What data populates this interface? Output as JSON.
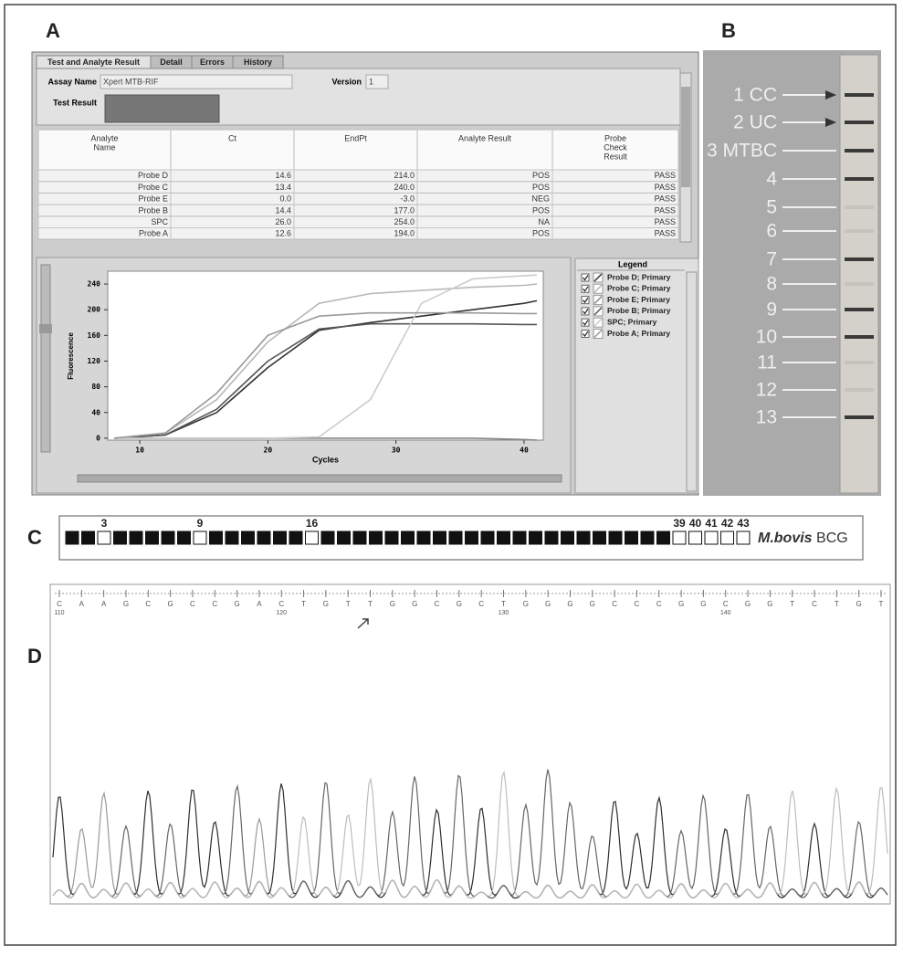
{
  "panels": [
    "A",
    "B",
    "C",
    "D"
  ],
  "software": {
    "tabs": [
      "Test and Analyte Result",
      "Detail",
      "Errors",
      "History"
    ],
    "assay_name_label": "Assay Name",
    "assay_name": "Xpert MTB-RIF",
    "version_label": "Version",
    "version": "1",
    "test_result_label": "Test Result",
    "table": {
      "header": [
        [
          "Analyte",
          "Name"
        ],
        [
          "Ct"
        ],
        [
          "EndPt"
        ],
        [
          "Analyte Result"
        ],
        [
          "Probe",
          "Check",
          "Result"
        ]
      ],
      "rows": [
        [
          "Probe D",
          "14.6",
          "214.0",
          "POS",
          "PASS"
        ],
        [
          "Probe C",
          "13.4",
          "240.0",
          "POS",
          "PASS"
        ],
        [
          "Probe E",
          "0.0",
          "-3.0",
          "NEG",
          "PASS"
        ],
        [
          "Probe B",
          "14.4",
          "177.0",
          "POS",
          "PASS"
        ],
        [
          "SPC",
          "26.0",
          "254.0",
          "NA",
          "PASS"
        ],
        [
          "Probe A",
          "12.6",
          "194.0",
          "POS",
          "PASS"
        ]
      ]
    },
    "legend": {
      "title": "Legend",
      "entries": [
        "Probe D; Primary",
        "Probe C; Primary",
        "Probe E; Primary",
        "Probe B; Primary",
        "SPC; Primary",
        "Probe A; Primary"
      ]
    }
  },
  "chart_data": {
    "type": "line",
    "x_label": "Cycles",
    "y_label": "Fluorescence",
    "x": [
      8,
      12,
      16,
      20,
      24,
      28,
      32,
      36,
      40,
      41
    ],
    "series": [
      {
        "name": "Probe D",
        "color": "#333333",
        "values": [
          0,
          5,
          40,
          110,
          168,
          180,
          190,
          200,
          210,
          214
        ]
      },
      {
        "name": "Probe C",
        "color": "#b8b8b8",
        "values": [
          0,
          8,
          60,
          150,
          210,
          225,
          230,
          235,
          238,
          240
        ]
      },
      {
        "name": "Probe E",
        "color": "#888888",
        "values": [
          0,
          0,
          0,
          0,
          0,
          0,
          0,
          0,
          -2,
          -3
        ]
      },
      {
        "name": "Probe B",
        "color": "#555555",
        "values": [
          0,
          5,
          45,
          120,
          170,
          178,
          178,
          178,
          177,
          177
        ]
      },
      {
        "name": "SPC",
        "color": "#cccccc",
        "values": [
          0,
          0,
          0,
          0,
          2,
          60,
          210,
          248,
          253,
          254
        ]
      },
      {
        "name": "Probe A",
        "color": "#999999",
        "values": [
          0,
          8,
          70,
          160,
          190,
          195,
          195,
          195,
          194,
          194
        ]
      }
    ],
    "xlim": [
      7.5,
      41.5
    ],
    "ylim": [
      -3,
      260
    ],
    "xticks": [
      10,
      20,
      30,
      40
    ],
    "yticks": [
      0,
      40,
      80,
      120,
      160,
      200,
      240
    ]
  },
  "strip": {
    "labels": [
      "1 CC",
      "2 UC",
      "3 MTBC",
      "4",
      "5",
      "6",
      "7",
      "8",
      "9",
      "10",
      "11",
      "12",
      "13"
    ]
  },
  "spoligotype": {
    "absent": [
      3,
      9,
      16,
      39,
      40,
      41,
      42,
      43
    ],
    "species": "M.bovis",
    "strain": "BCG"
  },
  "chromatogram": {
    "bases": [
      "C",
      "A",
      "A",
      "G",
      "C",
      "G",
      "C",
      "C",
      "G",
      "A",
      "C",
      "T",
      "G",
      "T",
      "T",
      "G",
      "G",
      "C",
      "G",
      "C",
      "T",
      "G",
      "G",
      "G",
      "G",
      "C",
      "C",
      "C",
      "G",
      "G",
      "C",
      "G",
      "G",
      "T",
      "C",
      "T",
      "G",
      "T"
    ],
    "positions": [
      110,
      120,
      130,
      140
    ]
  }
}
